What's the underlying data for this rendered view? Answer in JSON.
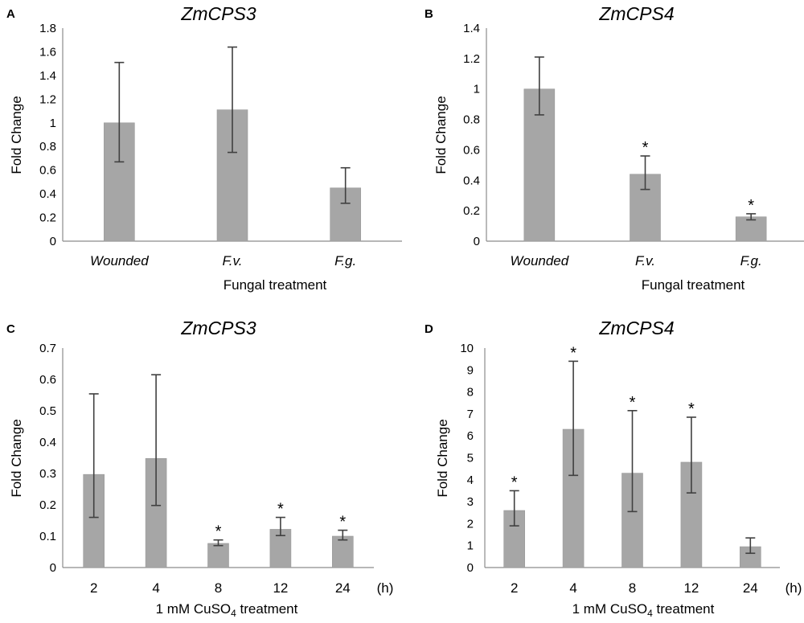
{
  "colors": {
    "bar": "#a6a6a6",
    "bar_edge": "#9a9a9a",
    "error": "#404040",
    "axis": "#8c8c8c",
    "text": "#000000"
  },
  "chart_data": [
    {
      "type": "bar",
      "panel": "A",
      "title": "ZmCPS3",
      "xlabel": "Fungal treatment",
      "ylabel": "Fold Change",
      "categories": [
        "Wounded",
        "F.v.",
        "F.g."
      ],
      "categories_italic": true,
      "unit_label": "",
      "values": [
        1.0,
        1.11,
        0.45
      ],
      "err_lower": [
        0.33,
        0.36,
        0.13
      ],
      "err_upper": [
        0.51,
        0.53,
        0.17
      ],
      "significance": [
        "",
        "",
        ""
      ],
      "ylim": [
        0,
        1.8
      ],
      "yticks": [
        0,
        0.2,
        0.4,
        0.6,
        0.8,
        1,
        1.2,
        1.4,
        1.6,
        1.8
      ],
      "ytick_labels": [
        "0",
        "0.2",
        "0.4",
        "0.6",
        "0.8",
        "1",
        "1.2",
        "1.4",
        "1.6",
        "1.8"
      ]
    },
    {
      "type": "bar",
      "panel": "B",
      "title": "ZmCPS4",
      "xlabel": "Fungal treatment",
      "ylabel": "Fold Change",
      "categories": [
        "Wounded",
        "F.v.",
        "F.g."
      ],
      "categories_italic": true,
      "unit_label": "",
      "values": [
        1.0,
        0.44,
        0.16
      ],
      "err_lower": [
        0.17,
        0.1,
        0.02
      ],
      "err_upper": [
        0.21,
        0.12,
        0.02
      ],
      "significance": [
        "",
        "*",
        "*"
      ],
      "ylim": [
        0,
        1.4
      ],
      "yticks": [
        0,
        0.2,
        0.4,
        0.6,
        0.8,
        1,
        1.2,
        1.4
      ],
      "ytick_labels": [
        "0",
        "0.2",
        "0.4",
        "0.6",
        "0.8",
        "1",
        "1.2",
        "1.4"
      ]
    },
    {
      "type": "bar",
      "panel": "C",
      "title": "ZmCPS3",
      "xlabel_pre": "1 mM CuSO",
      "xlabel_sub": "4",
      "xlabel_post": " treatment",
      "ylabel": "Fold Change",
      "categories": [
        "2",
        "4",
        "8",
        "12",
        "24"
      ],
      "categories_italic": false,
      "unit_label": "(h)",
      "values": [
        0.297,
        0.348,
        0.077,
        0.122,
        0.1
      ],
      "err_lower": [
        0.137,
        0.15,
        0.007,
        0.02,
        0.012
      ],
      "err_upper": [
        0.257,
        0.267,
        0.011,
        0.038,
        0.019
      ],
      "significance": [
        "",
        "",
        "*",
        "*",
        "*"
      ],
      "ylim": [
        0,
        0.7
      ],
      "yticks": [
        0,
        0.1,
        0.2,
        0.3,
        0.4,
        0.5,
        0.6,
        0.7
      ],
      "ytick_labels": [
        "0",
        "0.1",
        "0.2",
        "0.3",
        "0.4",
        "0.5",
        "0.6",
        "0.7"
      ]
    },
    {
      "type": "bar",
      "panel": "D",
      "title": "ZmCPS4",
      "xlabel_pre": "1 mM CuSO",
      "xlabel_sub": "4",
      "xlabel_post": " treatment",
      "ylabel": "Fold Change",
      "categories": [
        "2",
        "4",
        "8",
        "12",
        "24"
      ],
      "categories_italic": false,
      "unit_label": "(h)",
      "values": [
        2.6,
        6.3,
        4.3,
        4.8,
        0.95
      ],
      "err_lower": [
        0.7,
        2.1,
        1.75,
        1.4,
        0.3
      ],
      "err_upper": [
        0.9,
        3.1,
        2.85,
        2.05,
        0.4
      ],
      "significance": [
        "*",
        "*",
        "*",
        "*",
        ""
      ],
      "ylim": [
        0,
        10
      ],
      "yticks": [
        0,
        1,
        2,
        3,
        4,
        5,
        6,
        7,
        8,
        9,
        10
      ],
      "ytick_labels": [
        "0",
        "1",
        "2",
        "3",
        "4",
        "5",
        "6",
        "7",
        "8",
        "9",
        "10"
      ]
    }
  ]
}
